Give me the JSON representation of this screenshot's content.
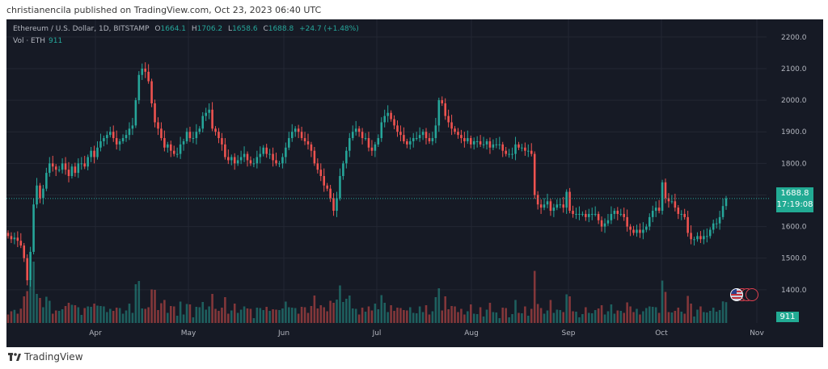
{
  "header": {
    "published_line": "christianencila published on TradingView.com, Oct 23, 2023 06:40 UTC"
  },
  "legend": {
    "symbol": "Ethereum / U.S. Dollar, 1D, BITSTAMP",
    "o_label": "O",
    "o_value": "1664.1",
    "h_label": "H",
    "h_value": "1706.2",
    "l_label": "L",
    "l_value": "1658.6",
    "c_label": "C",
    "c_value": "1688.8",
    "change": "+24.7 (+1.48%)",
    "vol_label": "Vol · ETH",
    "vol_value": "911"
  },
  "price_tag": {
    "price": "1688.8",
    "countdown": "17:19:08"
  },
  "volume_tag": "911",
  "brand": "TradingView",
  "colors": {
    "background": "#161a25",
    "up": "#26a69a",
    "down": "#ef5350",
    "grid": "#232733",
    "axis_text": "#b2b5be"
  },
  "chart_data": {
    "type": "candlestick",
    "interval": "1D",
    "x_tick_labels": [
      "Apr",
      "May",
      "Jun",
      "Jul",
      "Aug",
      "Sep",
      "Oct",
      "Nov"
    ],
    "y_tick_labels": [
      "1400.0",
      "1500.0",
      "1600.0",
      "1700.0",
      "1800.0",
      "1900.0",
      "2000.0",
      "2100.0",
      "2200.0"
    ],
    "ylim": [
      1300,
      2220
    ],
    "grid": true,
    "last_price": 1688.8,
    "closes": [
      1570,
      1560,
      1565,
      1555,
      1540,
      1500,
      1430,
      1520,
      1670,
      1730,
      1690,
      1720,
      1770,
      1800,
      1790,
      1780,
      1780,
      1800,
      1780,
      1760,
      1790,
      1770,
      1800,
      1800,
      1790,
      1820,
      1840,
      1820,
      1850,
      1870,
      1880,
      1890,
      1900,
      1880,
      1860,
      1870,
      1880,
      1890,
      1910,
      1920,
      2000,
      2080,
      2100,
      2090,
      2060,
      1990,
      1930,
      1910,
      1880,
      1850,
      1860,
      1840,
      1830,
      1830,
      1860,
      1870,
      1900,
      1880,
      1880,
      1900,
      1910,
      1950,
      1960,
      1970,
      1910,
      1900,
      1880,
      1860,
      1820,
      1810,
      1820,
      1800,
      1810,
      1820,
      1830,
      1810,
      1800,
      1800,
      1820,
      1830,
      1850,
      1830,
      1830,
      1810,
      1800,
      1800,
      1820,
      1850,
      1880,
      1900,
      1910,
      1900,
      1880,
      1870,
      1860,
      1840,
      1800,
      1780,
      1760,
      1730,
      1720,
      1690,
      1650,
      1690,
      1760,
      1800,
      1840,
      1880,
      1900,
      1910,
      1900,
      1880,
      1880,
      1850,
      1840,
      1860,
      1880,
      1930,
      1950,
      1960,
      1940,
      1920,
      1900,
      1890,
      1870,
      1860,
      1870,
      1880,
      1880,
      1890,
      1900,
      1880,
      1870,
      1880,
      1920,
      2000,
      1990,
      1950,
      1930,
      1910,
      1900,
      1890,
      1880,
      1870,
      1880,
      1860,
      1870,
      1870,
      1860,
      1860,
      1870,
      1850,
      1860,
      1860,
      1860,
      1840,
      1830,
      1830,
      1830,
      1860,
      1850,
      1850,
      1840,
      1840,
      1830,
      1700,
      1670,
      1660,
      1670,
      1680,
      1650,
      1660,
      1670,
      1670,
      1660,
      1710,
      1650,
      1640,
      1640,
      1640,
      1640,
      1630,
      1640,
      1640,
      1640,
      1620,
      1600,
      1610,
      1620,
      1640,
      1650,
      1640,
      1640,
      1630,
      1600,
      1590,
      1580,
      1590,
      1580,
      1590,
      1600,
      1630,
      1650,
      1660,
      1650,
      1740,
      1690,
      1680,
      1680,
      1660,
      1640,
      1640,
      1630,
      1580,
      1560,
      1560,
      1570,
      1560,
      1570,
      1570,
      1590,
      1610,
      1610,
      1630,
      1665,
      1689
    ]
  }
}
